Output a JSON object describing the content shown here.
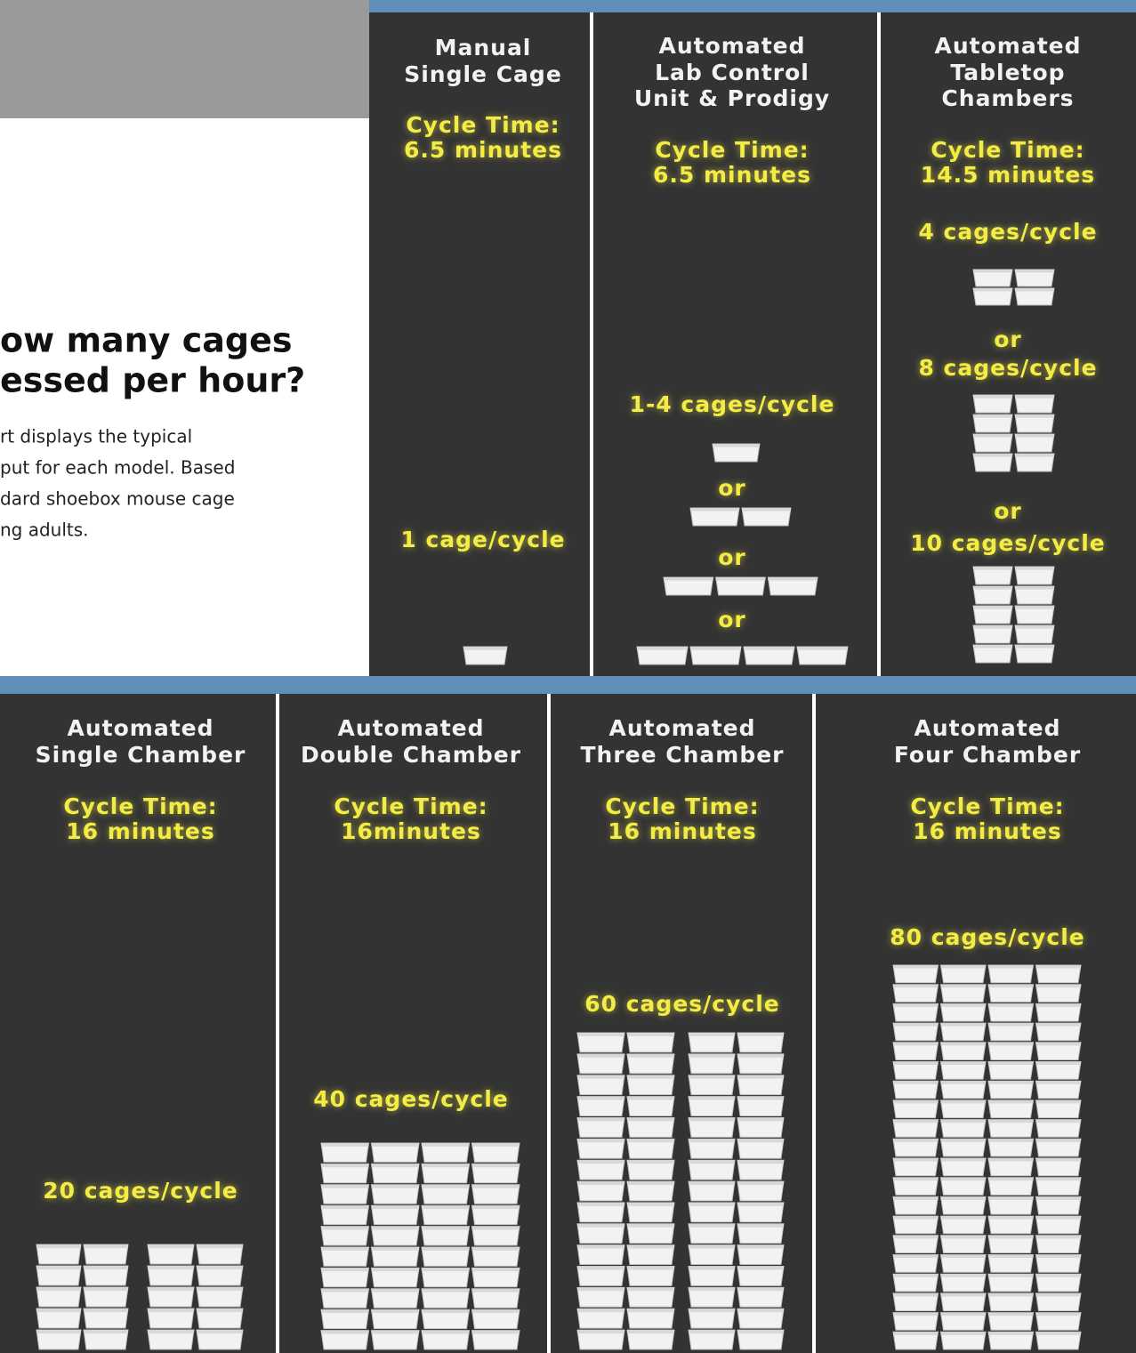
{
  "intro": {
    "title_lines": [
      "ow many cages",
      "essed per hour?"
    ],
    "body_lines": [
      "rt displays the typical",
      "put for each model. Based",
      "dard shoebox mouse cage",
      "ng adults."
    ]
  },
  "panels": [
    {
      "heading_lines": [
        "Manual",
        "Single Cage"
      ],
      "cycle_time_lines": [
        "Cycle Time:",
        "6.5 minutes"
      ],
      "capacity_texts": [
        "1 cage/cycle"
      ]
    },
    {
      "heading_lines": [
        "Automated",
        "Lab Control",
        "Unit & Prodigy"
      ],
      "cycle_time_lines": [
        "Cycle Time:",
        "6.5 minutes"
      ],
      "capacity_texts": [
        "1-4 cages/cycle",
        "or",
        "or",
        "or"
      ]
    },
    {
      "heading_lines": [
        "Automated",
        "Tabletop",
        "Chambers"
      ],
      "cycle_time_lines": [
        "Cycle Time:",
        "14.5 minutes"
      ],
      "capacity_texts": [
        "4 cages/cycle",
        "or",
        "8 cages/cycle",
        "or",
        "10 cages/cycle"
      ]
    },
    {
      "heading_lines": [
        "Automated",
        "Single Chamber"
      ],
      "cycle_time_lines": [
        "Cycle Time:",
        "16 minutes"
      ],
      "capacity_texts": [
        "20 cages/cycle"
      ]
    },
    {
      "heading_lines": [
        "Automated",
        "Double Chamber"
      ],
      "cycle_time_lines": [
        "Cycle Time:",
        "16minutes"
      ],
      "capacity_texts": [
        "40 cages/cycle"
      ]
    },
    {
      "heading_lines": [
        "Automated",
        "Three Chamber"
      ],
      "cycle_time_lines": [
        "Cycle Time:",
        "16 minutes"
      ],
      "capacity_texts": [
        "60 cages/cycle"
      ]
    },
    {
      "heading_lines": [
        "Automated",
        "Four Chamber"
      ],
      "cycle_time_lines": [
        "Cycle Time:",
        "16 minutes"
      ],
      "capacity_texts": [
        "80 cages/cycle"
      ]
    }
  ]
}
